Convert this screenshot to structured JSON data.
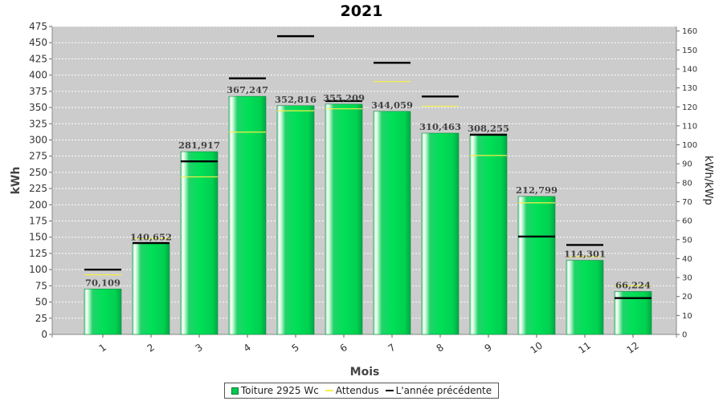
{
  "chart_data": {
    "type": "bar",
    "title": "2021",
    "xlabel": "Mois",
    "ylabel": "kWh",
    "y2label": "kWh/kWp",
    "ylim": [
      0,
      475
    ],
    "y2lim": [
      0,
      162.4
    ],
    "yticks": [
      0,
      25,
      50,
      75,
      100,
      125,
      150,
      175,
      200,
      225,
      250,
      275,
      300,
      325,
      350,
      375,
      400,
      425,
      450,
      475
    ],
    "y2ticks": [
      0,
      10,
      20,
      30,
      40,
      50,
      60,
      70,
      80,
      90,
      100,
      110,
      120,
      130,
      140,
      150,
      160
    ],
    "categories": [
      "1",
      "2",
      "3",
      "4",
      "5",
      "6",
      "7",
      "8",
      "9",
      "10",
      "11",
      "12"
    ],
    "grid": true,
    "legend_position": "bottom",
    "series": [
      {
        "name": "Toiture 2925 Wc",
        "kind": "bar",
        "color": "#00c853",
        "values": [
          70.109,
          140.652,
          281.917,
          367.247,
          352.816,
          355.209,
          344.059,
          310.463,
          308.255,
          212.799,
          114.301,
          66.224
        ],
        "labels": [
          "70,109",
          "140,652",
          "281,917",
          "367,247",
          "352,816",
          "355,209",
          "344,059",
          "310,463",
          "308,255",
          "212,799",
          "114,301",
          "66,224"
        ]
      },
      {
        "name": "Attendus",
        "kind": "marker",
        "color": "#f5ef4a",
        "values": [
          92,
          148,
          243,
          312,
          345,
          348,
          390,
          352,
          276,
          203,
          120,
          75
        ]
      },
      {
        "name": "L'année précédente",
        "kind": "marker",
        "color": "#000000",
        "values": [
          100,
          141,
          267,
          395,
          460,
          360,
          419,
          367,
          308,
          151,
          138,
          56
        ]
      }
    ]
  }
}
